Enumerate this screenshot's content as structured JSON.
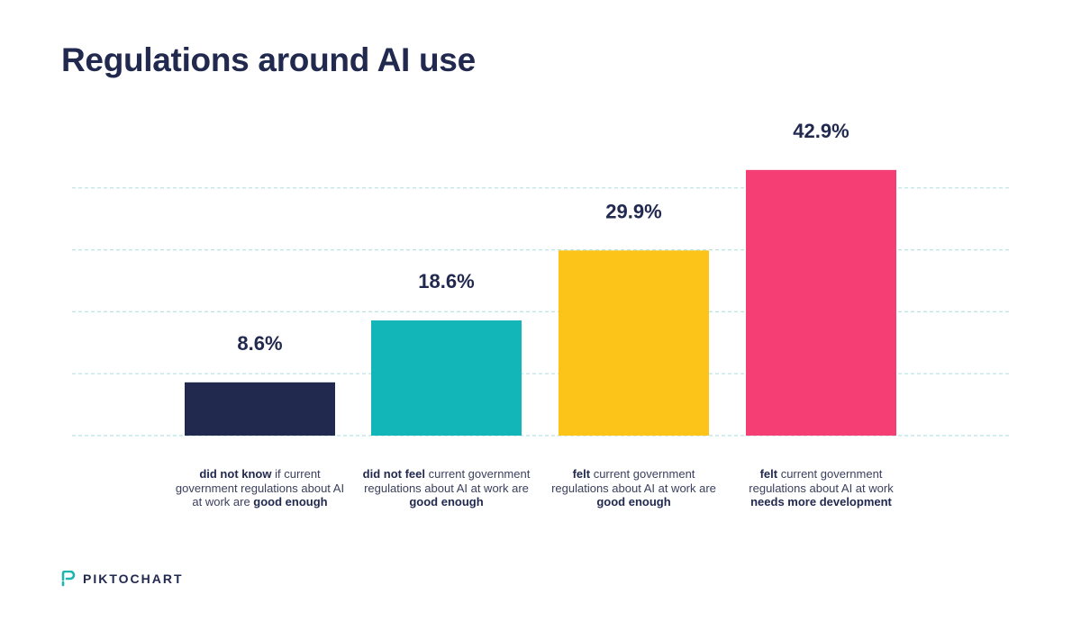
{
  "title": "Regulations around AI use",
  "brand": "PIKTOCHART",
  "chart_data": {
    "type": "bar",
    "title": "Regulations around AI use",
    "ylim": [
      0,
      43
    ],
    "gridlines": [
      0,
      10,
      20,
      30,
      40
    ],
    "grid": true,
    "categories": [
      [
        {
          "t": "did not know",
          "b": true
        },
        {
          "t": " if current government regulations about AI at work are ",
          "b": false
        },
        {
          "t": "good enough",
          "b": true
        }
      ],
      [
        {
          "t": "did not feel",
          "b": true
        },
        {
          "t": " current government regulations about AI at work are ",
          "b": false
        },
        {
          "t": "good enough",
          "b": true
        }
      ],
      [
        {
          "t": "felt",
          "b": true
        },
        {
          "t": " current government regulations about AI at work are ",
          "b": false
        },
        {
          "t": "good enough",
          "b": true
        }
      ],
      [
        {
          "t": "felt",
          "b": true
        },
        {
          "t": " current government regulations about AI at work ",
          "b": false
        },
        {
          "t": "needs more development",
          "b": true
        }
      ]
    ],
    "values": [
      8.6,
      18.6,
      29.9,
      42.9
    ],
    "value_labels": [
      "8.6%",
      "18.6%",
      "29.9%",
      "42.9%"
    ],
    "colors": [
      "#22294f",
      "#12b5b8",
      "#fcc419",
      "#f53e73"
    ],
    "grid_color": "#b7e3e0"
  }
}
